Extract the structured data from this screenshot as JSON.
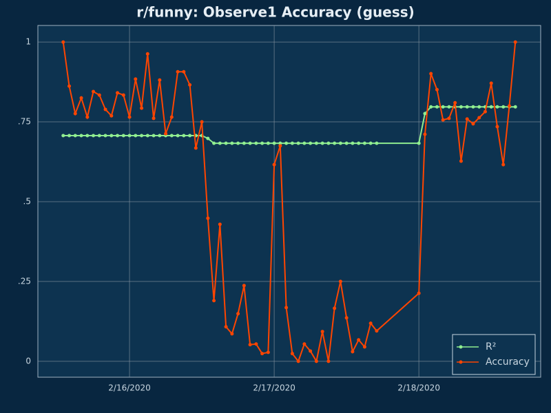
{
  "chart_data": {
    "type": "line",
    "title": "r/funny: Observe1 Accuracy (guess)",
    "x": [
      -11,
      -10,
      -9,
      -8,
      -7,
      -6,
      -5,
      -4,
      -3,
      -2,
      -1,
      0,
      1,
      2,
      3,
      4,
      5,
      6,
      7,
      8,
      9,
      10,
      11,
      12,
      13,
      14,
      15,
      16,
      17,
      18,
      19,
      20,
      21,
      22,
      23,
      24,
      25,
      26,
      27,
      28,
      29,
      30,
      31,
      32,
      33,
      34,
      35,
      36,
      37,
      38,
      39,
      40,
      41,
      48,
      49,
      50,
      51,
      52,
      53,
      54,
      55,
      56,
      57,
      58,
      59,
      60,
      61,
      62,
      63,
      64
    ],
    "series": [
      {
        "name": "R²",
        "color": "#90ee90",
        "values": [
          0.707,
          0.707,
          0.707,
          0.707,
          0.707,
          0.707,
          0.707,
          0.707,
          0.707,
          0.707,
          0.707,
          0.707,
          0.707,
          0.707,
          0.707,
          0.707,
          0.707,
          0.707,
          0.707,
          0.707,
          0.707,
          0.707,
          0.707,
          0.707,
          0.698,
          0.683,
          0.683,
          0.683,
          0.683,
          0.683,
          0.683,
          0.683,
          0.683,
          0.683,
          0.683,
          0.683,
          0.683,
          0.683,
          0.683,
          0.683,
          0.683,
          0.683,
          0.683,
          0.683,
          0.683,
          0.683,
          0.683,
          0.683,
          0.683,
          0.683,
          0.683,
          0.683,
          0.683,
          0.683,
          0.776,
          0.797,
          0.797,
          0.797,
          0.797,
          0.797,
          0.797,
          0.797,
          0.797,
          0.797,
          0.797,
          0.797,
          0.797,
          0.797,
          0.797,
          0.797
        ]
      },
      {
        "name": "Accuracy",
        "color": "#ff4500",
        "values": [
          1.0,
          0.862,
          0.776,
          0.825,
          0.765,
          0.845,
          0.834,
          0.789,
          0.769,
          0.841,
          0.834,
          0.765,
          0.884,
          0.793,
          0.963,
          0.761,
          0.881,
          0.713,
          0.765,
          0.907,
          0.907,
          0.866,
          0.668,
          0.75,
          0.448,
          0.19,
          0.429,
          0.108,
          0.086,
          0.149,
          0.237,
          0.052,
          0.054,
          0.024,
          0.028,
          0.616,
          0.675,
          0.168,
          0.024,
          0,
          0.054,
          0.032,
          0,
          0.093,
          0,
          0.166,
          0.25,
          0.136,
          0.03,
          0.067,
          0.045,
          0.119,
          0.095,
          0.213,
          0.711,
          0.901,
          0.851,
          0.756,
          0.761,
          0.81,
          0.627,
          0.759,
          0.744,
          0.763,
          0.782,
          0.871,
          0.735,
          0.616,
          0.8,
          1.0
        ]
      }
    ],
    "xlim": [
      -15.2,
      68.2
    ],
    "xticks": [
      {
        "value": 0,
        "label": "2/16/2020"
      },
      {
        "value": 24,
        "label": "2/17/2020"
      },
      {
        "value": 48,
        "label": "2/18/2020"
      }
    ],
    "ylim": [
      -0.05,
      1.052
    ],
    "yticks": [
      0,
      {
        "value": 0.25,
        "label": ".25"
      },
      {
        "value": 0.5,
        "label": ".5"
      },
      {
        "value": 0.75,
        "label": ".75"
      },
      1
    ],
    "grid": true,
    "legend": "lower right"
  }
}
